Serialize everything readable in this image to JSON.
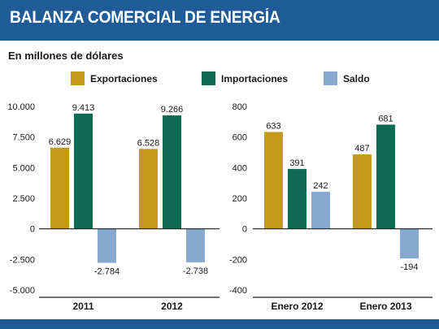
{
  "title": "BALANZA COMERCIAL DE ENERGÍA",
  "subtitle": "En millones de dólares",
  "legend": [
    {
      "name": "Exportaciones",
      "color": "#c59a1b"
    },
    {
      "name": "Importaciones",
      "color": "#0e6b52"
    },
    {
      "name": "Saldo",
      "color": "#88a9cf"
    }
  ],
  "colors": {
    "header": "#1f5b96",
    "exports": "#c59a1b",
    "imports": "#0e6b52",
    "balance": "#88a9cf"
  },
  "chart_data": [
    {
      "type": "bar",
      "title": "",
      "categories": [
        "2011",
        "2012"
      ],
      "series": [
        {
          "name": "Exportaciones",
          "values": [
            6629,
            6528
          ],
          "labels": [
            "6.629",
            "6.528"
          ]
        },
        {
          "name": "Importaciones",
          "values": [
            9413,
            9266
          ],
          "labels": [
            "9.413",
            "9.266"
          ]
        },
        {
          "name": "Saldo",
          "values": [
            -2784,
            -2738
          ],
          "labels": [
            "-2.784",
            "-2.738"
          ]
        }
      ],
      "yticks": [
        10000,
        7500,
        5000,
        2500,
        0,
        -2500,
        -5000
      ],
      "ytick_labels": [
        "10.000",
        "7.500",
        "5.000",
        "2.500",
        "0",
        "-2.500",
        "-5.000"
      ],
      "ylim": [
        -5000,
        10000
      ],
      "grid": false
    },
    {
      "type": "bar",
      "title": "",
      "categories": [
        "Enero 2012",
        "Enero 2013"
      ],
      "series": [
        {
          "name": "Exportaciones",
          "values": [
            633,
            487
          ],
          "labels": [
            "633",
            "487"
          ]
        },
        {
          "name": "Importaciones",
          "values": [
            391,
            681
          ],
          "labels": [
            "391",
            "681"
          ]
        },
        {
          "name": "Saldo",
          "values": [
            242,
            -194
          ],
          "labels": [
            "242",
            "-194"
          ]
        }
      ],
      "yticks": [
        800,
        600,
        400,
        200,
        0,
        -200,
        -400
      ],
      "ytick_labels": [
        "800",
        "600",
        "400",
        "200",
        "0",
        "-200",
        "-400"
      ],
      "ylim": [
        -400,
        800
      ],
      "grid": false
    }
  ]
}
